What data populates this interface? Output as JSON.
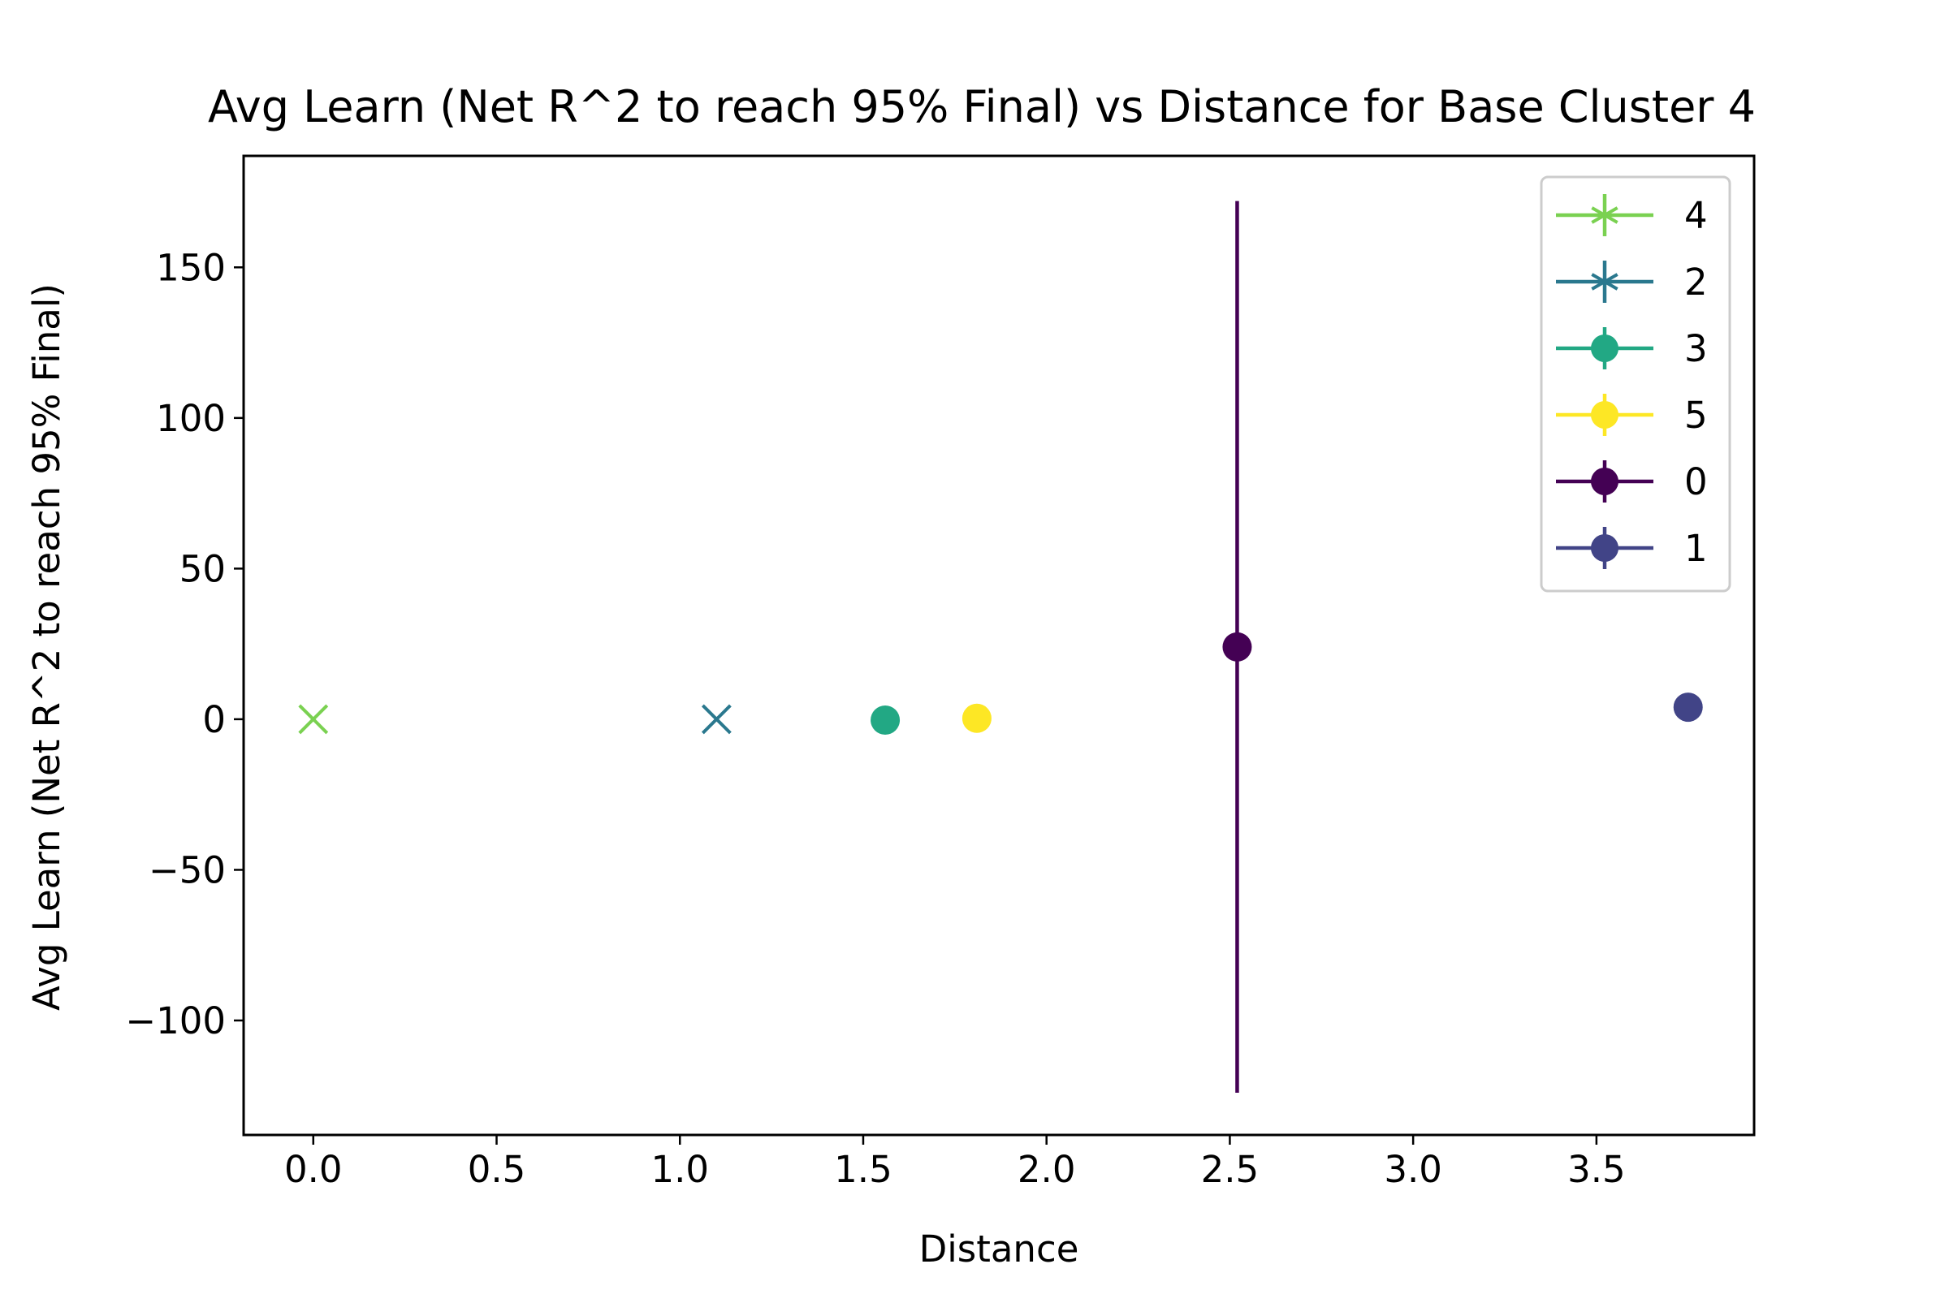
{
  "chart_data": {
    "type": "scatter",
    "title": "Avg Learn (Net R^2 to reach 95% Final) vs Distance for Base Cluster 4",
    "xlabel": "Distance",
    "ylabel": "Avg Learn (Net R^2 to reach 95% Final)",
    "xlim": [
      -0.19,
      3.93
    ],
    "ylim": [
      -138,
      187
    ],
    "xticks": [
      0.0,
      0.5,
      1.0,
      1.5,
      2.0,
      2.5,
      3.0,
      3.5
    ],
    "xtick_labels": [
      "0.0",
      "0.5",
      "1.0",
      "1.5",
      "2.0",
      "2.5",
      "3.0",
      "3.5"
    ],
    "yticks": [
      -100,
      -50,
      0,
      50,
      100,
      150
    ],
    "ytick_labels": [
      "−100",
      "−50",
      "0",
      "50",
      "100",
      "150"
    ],
    "grid": false,
    "legend_position": "top-right",
    "series": [
      {
        "name": "4",
        "x": 0.0,
        "y": 0.0,
        "yerr": 0,
        "marker": "x",
        "legend_marker": "star",
        "color": "#7ad151"
      },
      {
        "name": "2",
        "x": 1.1,
        "y": 0.0,
        "yerr": 0,
        "marker": "x",
        "legend_marker": "star",
        "color": "#2a788e"
      },
      {
        "name": "3",
        "x": 1.56,
        "y": -0.3,
        "yerr": 0,
        "marker": "circle",
        "legend_marker": "circle",
        "color": "#22a884"
      },
      {
        "name": "5",
        "x": 1.81,
        "y": 0.3,
        "yerr": 0,
        "marker": "circle",
        "legend_marker": "circle",
        "color": "#fde725"
      },
      {
        "name": "0",
        "x": 2.52,
        "y": 24,
        "yerr": 148,
        "marker": "circle",
        "legend_marker": "circle",
        "color": "#440154"
      },
      {
        "name": "1",
        "x": 3.75,
        "y": 4,
        "yerr": 0,
        "marker": "circle",
        "legend_marker": "circle",
        "color": "#414487"
      }
    ]
  }
}
